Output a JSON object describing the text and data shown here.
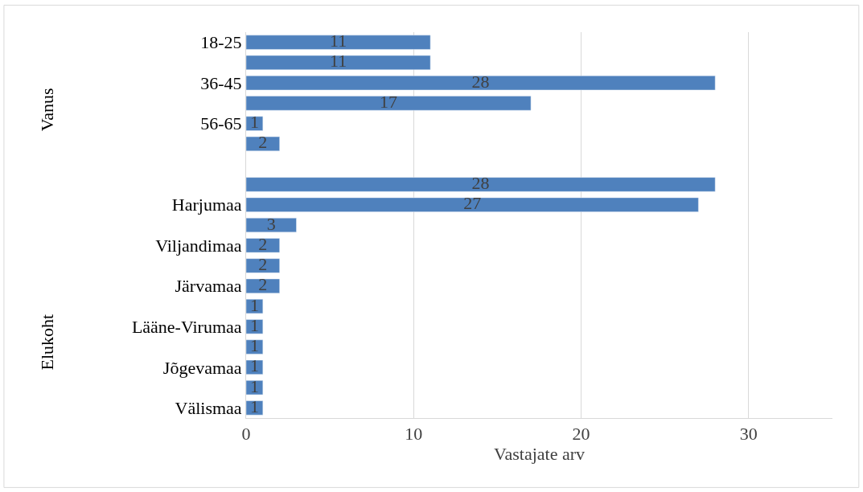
{
  "chart_data": {
    "type": "bar",
    "orientation": "horizontal",
    "xlabel": "Vastajate arv",
    "categories": [
      "18-25",
      null,
      "36-45",
      null,
      "56-65",
      null,
      null,
      null,
      "Harjumaa",
      null,
      "Viljandimaa",
      null,
      "Järvamaa",
      null,
      "Lääne-Virumaa",
      null,
      "Jõgevamaa",
      null,
      "Välismaa"
    ],
    "values": [
      11,
      11,
      28,
      17,
      1,
      2,
      null,
      28,
      27,
      3,
      2,
      2,
      2,
      1,
      1,
      1,
      1,
      1,
      1
    ],
    "color": "#4f81bd",
    "xlim": [
      0,
      35
    ],
    "xticks": [
      0,
      10,
      20,
      30
    ],
    "grid": "x",
    "data_labels": true,
    "annotations": [
      "Vanus",
      "Elukoht"
    ]
  }
}
